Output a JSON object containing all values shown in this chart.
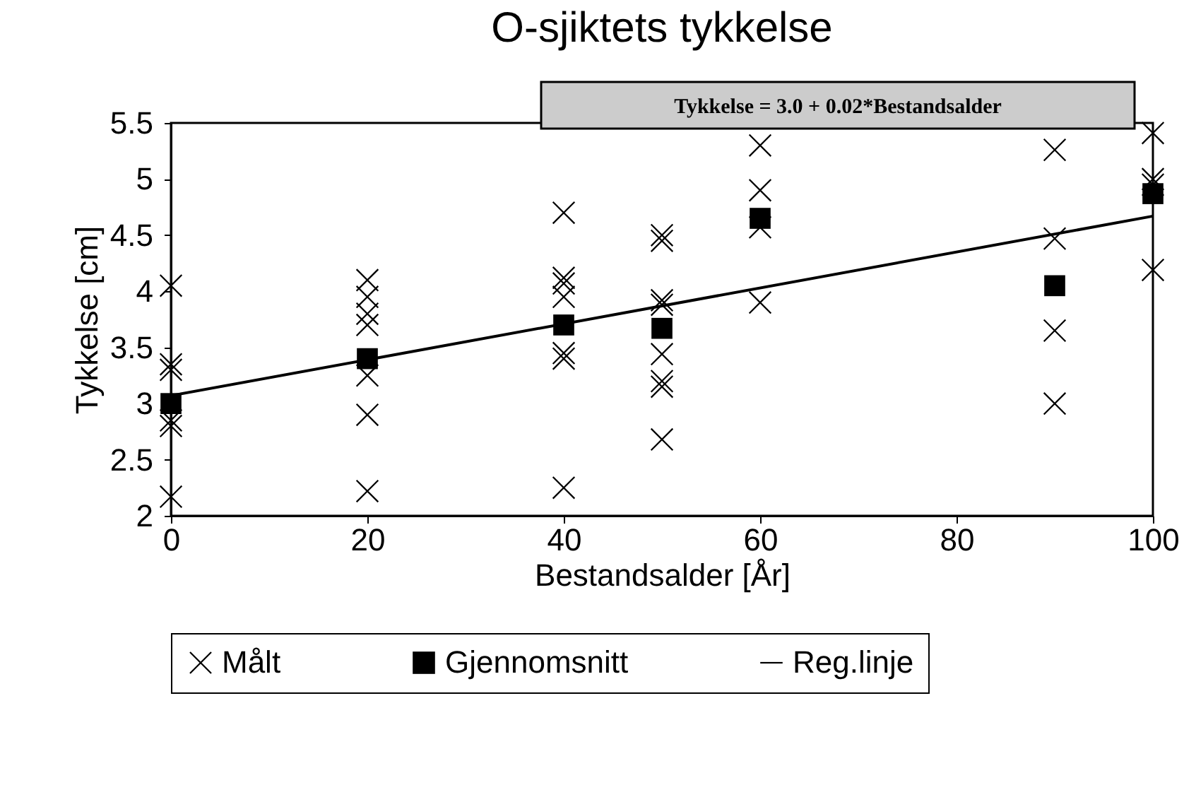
{
  "chart_data": {
    "type": "scatter",
    "title": "O-sjiktets tykkelse",
    "xlabel": "Bestandsalder [År]",
    "ylabel": "Tykkelse [cm]",
    "annotations": [
      "Tykkelse = 3.0 + 0.02*Bestandsalder"
    ],
    "xlim": [
      0,
      100
    ],
    "xticks": [
      0,
      20,
      40,
      60,
      80,
      100
    ],
    "ylim": [
      2,
      5.5
    ],
    "yticks": [
      2,
      2.5,
      3,
      3.5,
      4,
      4.5,
      5,
      5.5
    ],
    "legend": "bottom",
    "grid": false,
    "series": [
      {
        "name": "Målt",
        "type": "scatter",
        "marker": "cross",
        "color": "#000000",
        "x": [
          0,
          0,
          0,
          0,
          0,
          0,
          20,
          20,
          20,
          20,
          20,
          20,
          20,
          40,
          40,
          40,
          40,
          40,
          40,
          40,
          50,
          50,
          50,
          50,
          50,
          50,
          50,
          50,
          60,
          60,
          60,
          60,
          90,
          90,
          90,
          90,
          100,
          100,
          100,
          100
        ],
        "values": [
          4.05,
          3.35,
          3.3,
          2.85,
          2.8,
          2.17,
          4.1,
          3.95,
          3.8,
          3.7,
          3.25,
          2.9,
          2.22,
          4.7,
          4.12,
          4.07,
          3.95,
          3.45,
          3.4,
          2.25,
          4.5,
          4.45,
          3.92,
          3.88,
          3.44,
          3.2,
          3.15,
          2.68,
          5.3,
          4.9,
          4.57,
          3.9,
          5.26,
          4.47,
          3.65,
          3.0,
          5.41,
          5.0,
          4.95,
          4.19
        ]
      },
      {
        "name": "Gjennomsnitt",
        "type": "scatter",
        "marker": "square",
        "color": "#000000",
        "x": [
          0,
          20,
          40,
          50,
          60,
          90,
          100
        ],
        "values": [
          3.0,
          3.4,
          3.7,
          3.67,
          4.65,
          4.05,
          4.87
        ]
      },
      {
        "name": "Reg.linje",
        "type": "line",
        "marker": "none",
        "color": "#000000",
        "x": [
          0,
          100
        ],
        "values": [
          3.07,
          4.67
        ]
      }
    ]
  }
}
